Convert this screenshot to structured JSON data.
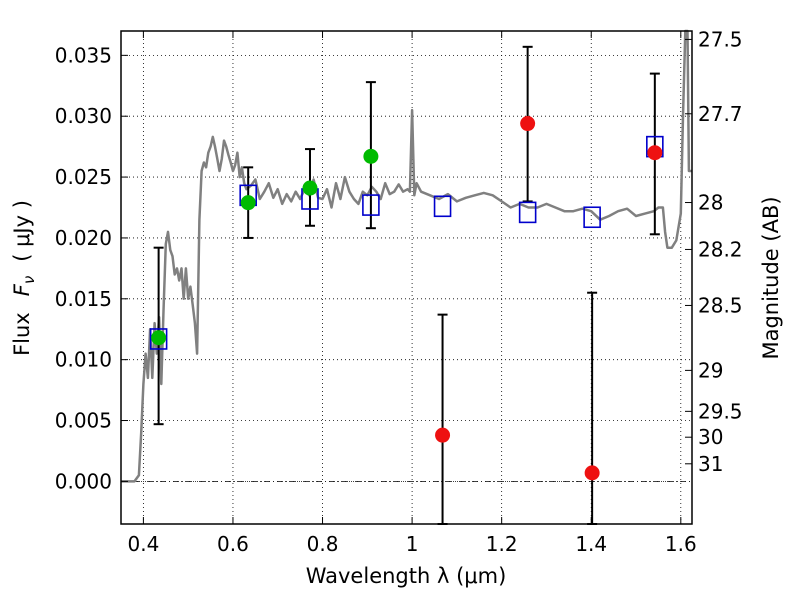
{
  "chart_data": {
    "type": "scatter",
    "xlabel": "Wavelength  λ (μm)",
    "ylabel_text": "Flux",
    "ylabel_symbol": "F",
    "ylabel_sub": "ν",
    "ylabel_unit": "( μJy )",
    "ylabel_right": "Magnitude (AB)",
    "xlim": [
      0.35,
      1.625
    ],
    "ylim": [
      -0.0035,
      0.037
    ],
    "grid": true,
    "x_ticks": [
      {
        "value": 0.4,
        "label": "0.4"
      },
      {
        "value": 0.6,
        "label": "0.6"
      },
      {
        "value": 0.8,
        "label": "0.8"
      },
      {
        "value": 1.0,
        "label": "1"
      },
      {
        "value": 1.2,
        "label": "1.2"
      },
      {
        "value": 1.4,
        "label": "1.4"
      },
      {
        "value": 1.6,
        "label": "1.6"
      }
    ],
    "y_ticks": [
      {
        "value": 0.0,
        "label": "0.000"
      },
      {
        "value": 0.005,
        "label": "0.005"
      },
      {
        "value": 0.01,
        "label": "0.010"
      },
      {
        "value": 0.015,
        "label": "0.015"
      },
      {
        "value": 0.02,
        "label": "0.020"
      },
      {
        "value": 0.025,
        "label": "0.025"
      },
      {
        "value": 0.03,
        "label": "0.030"
      },
      {
        "value": 0.035,
        "label": "0.035"
      }
    ],
    "mag_ticks": [
      {
        "value": 27.5,
        "label": "27.5"
      },
      {
        "value": 27.7,
        "label": "27.7"
      },
      {
        "value": 28.0,
        "label": "28"
      },
      {
        "value": 28.2,
        "label": "28.2"
      },
      {
        "value": 28.5,
        "label": "28.5"
      },
      {
        "value": 29.0,
        "label": "29"
      },
      {
        "value": 29.5,
        "label": "29.5"
      },
      {
        "value": 30.0,
        "label": "30"
      },
      {
        "value": 31.0,
        "label": "31"
      }
    ],
    "series": [
      {
        "type": "line",
        "color": "#808080",
        "points": [
          [
            0.35,
            0.0
          ],
          [
            0.38,
            0.0
          ],
          [
            0.39,
            0.0005
          ],
          [
            0.395,
            0.004
          ],
          [
            0.4,
            0.008
          ],
          [
            0.405,
            0.0105
          ],
          [
            0.41,
            0.0085
          ],
          [
            0.415,
            0.0125
          ],
          [
            0.42,
            0.0085
          ],
          [
            0.425,
            0.013
          ],
          [
            0.43,
            0.0105
          ],
          [
            0.435,
            0.0135
          ],
          [
            0.44,
            0.008
          ],
          [
            0.445,
            0.014
          ],
          [
            0.45,
            0.0195
          ],
          [
            0.455,
            0.0205
          ],
          [
            0.46,
            0.019
          ],
          [
            0.465,
            0.0185
          ],
          [
            0.47,
            0.017
          ],
          [
            0.475,
            0.0175
          ],
          [
            0.48,
            0.0165
          ],
          [
            0.485,
            0.0175
          ],
          [
            0.49,
            0.015
          ],
          [
            0.495,
            0.0175
          ],
          [
            0.5,
            0.015
          ],
          [
            0.505,
            0.016
          ],
          [
            0.51,
            0.0145
          ],
          [
            0.515,
            0.013
          ],
          [
            0.52,
            0.0105
          ],
          [
            0.525,
            0.0215
          ],
          [
            0.53,
            0.0255
          ],
          [
            0.535,
            0.0262
          ],
          [
            0.54,
            0.0258
          ],
          [
            0.545,
            0.027
          ],
          [
            0.55,
            0.0275
          ],
          [
            0.555,
            0.0283
          ],
          [
            0.56,
            0.0275
          ],
          [
            0.565,
            0.0265
          ],
          [
            0.57,
            0.0255
          ],
          [
            0.575,
            0.0265
          ],
          [
            0.58,
            0.028
          ],
          [
            0.585,
            0.0275
          ],
          [
            0.59,
            0.0268
          ],
          [
            0.595,
            0.0262
          ],
          [
            0.6,
            0.0255
          ],
          [
            0.605,
            0.026
          ],
          [
            0.61,
            0.027
          ],
          [
            0.615,
            0.025
          ],
          [
            0.62,
            0.0258
          ],
          [
            0.625,
            0.0245
          ],
          [
            0.63,
            0.024
          ],
          [
            0.64,
            0.0243
          ],
          [
            0.65,
            0.0248
          ],
          [
            0.66,
            0.0232
          ],
          [
            0.67,
            0.0238
          ],
          [
            0.68,
            0.0245
          ],
          [
            0.69,
            0.0233
          ],
          [
            0.7,
            0.024
          ],
          [
            0.71,
            0.0228
          ],
          [
            0.72,
            0.0236
          ],
          [
            0.73,
            0.023
          ],
          [
            0.74,
            0.0238
          ],
          [
            0.75,
            0.0232
          ],
          [
            0.76,
            0.024
          ],
          [
            0.77,
            0.0235
          ],
          [
            0.78,
            0.0248
          ],
          [
            0.79,
            0.0233
          ],
          [
            0.8,
            0.0232
          ],
          [
            0.81,
            0.024
          ],
          [
            0.82,
            0.0225
          ],
          [
            0.83,
            0.0245
          ],
          [
            0.84,
            0.0232
          ],
          [
            0.85,
            0.025
          ],
          [
            0.86,
            0.0238
          ],
          [
            0.87,
            0.0232
          ],
          [
            0.88,
            0.0228
          ],
          [
            0.89,
            0.0238
          ],
          [
            0.9,
            0.0235
          ],
          [
            0.91,
            0.0242
          ],
          [
            0.92,
            0.0238
          ],
          [
            0.93,
            0.0232
          ],
          [
            0.94,
            0.0245
          ],
          [
            0.95,
            0.0236
          ],
          [
            0.96,
            0.0238
          ],
          [
            0.97,
            0.0244
          ],
          [
            0.98,
            0.0238
          ],
          [
            0.99,
            0.024
          ],
          [
            0.995,
            0.0238
          ],
          [
            1.0,
            0.0305
          ],
          [
            1.005,
            0.0235
          ],
          [
            1.01,
            0.0245
          ],
          [
            1.02,
            0.0238
          ],
          [
            1.04,
            0.0235
          ],
          [
            1.06,
            0.0232
          ],
          [
            1.08,
            0.0236
          ],
          [
            1.1,
            0.023
          ],
          [
            1.12,
            0.0233
          ],
          [
            1.14,
            0.0235
          ],
          [
            1.16,
            0.0237
          ],
          [
            1.18,
            0.0235
          ],
          [
            1.2,
            0.023
          ],
          [
            1.22,
            0.0225
          ],
          [
            1.24,
            0.0228
          ],
          [
            1.26,
            0.0225
          ],
          [
            1.28,
            0.0225
          ],
          [
            1.3,
            0.0228
          ],
          [
            1.32,
            0.0225
          ],
          [
            1.34,
            0.0222
          ],
          [
            1.36,
            0.0222
          ],
          [
            1.38,
            0.0224
          ],
          [
            1.4,
            0.0222
          ],
          [
            1.42,
            0.0215
          ],
          [
            1.44,
            0.0218
          ],
          [
            1.46,
            0.0222
          ],
          [
            1.48,
            0.0224
          ],
          [
            1.5,
            0.0218
          ],
          [
            1.52,
            0.022
          ],
          [
            1.54,
            0.0222
          ],
          [
            1.55,
            0.0225
          ],
          [
            1.56,
            0.0225
          ],
          [
            1.565,
            0.0205
          ],
          [
            1.57,
            0.0192
          ],
          [
            1.58,
            0.0192
          ],
          [
            1.59,
            0.0198
          ],
          [
            1.6,
            0.022
          ],
          [
            1.605,
            0.03
          ],
          [
            1.61,
            0.037
          ],
          [
            1.615,
            0.037
          ],
          [
            1.618,
            0.0255
          ],
          [
            1.625,
            0.0255
          ]
        ]
      },
      {
        "type": "errorbar",
        "color": "#000000",
        "points": [
          {
            "x": 0.434,
            "low": 0.0047,
            "high": 0.0192
          },
          {
            "x": 0.634,
            "low": 0.02,
            "high": 0.0258
          },
          {
            "x": 0.772,
            "low": 0.021,
            "high": 0.0273
          },
          {
            "x": 0.908,
            "low": 0.0208,
            "high": 0.0328
          },
          {
            "x": 1.068,
            "low": -0.0035,
            "high": 0.0137
          },
          {
            "x": 1.258,
            "low": 0.023,
            "high": 0.0357
          },
          {
            "x": 1.402,
            "low": -0.0035,
            "high": 0.0155
          },
          {
            "x": 1.542,
            "low": 0.0203,
            "high": 0.0335
          }
        ]
      },
      {
        "type": "scatter",
        "marker": "square",
        "color": "#0000cc",
        "points": [
          [
            0.434,
            0.0117
          ],
          [
            0.634,
            0.0235
          ],
          [
            0.772,
            0.0232
          ],
          [
            0.908,
            0.0227
          ],
          [
            1.068,
            0.0226
          ],
          [
            1.258,
            0.0221
          ],
          [
            1.402,
            0.0217
          ],
          [
            1.542,
            0.0275
          ]
        ]
      },
      {
        "type": "scatter",
        "marker": "circle",
        "color": "#00bb00",
        "points": [
          [
            0.434,
            0.0118
          ],
          [
            0.634,
            0.0229
          ],
          [
            0.772,
            0.0241
          ],
          [
            0.908,
            0.0267
          ]
        ]
      },
      {
        "type": "scatter",
        "marker": "circle",
        "color": "#ee1111",
        "points": [
          [
            1.068,
            0.0038
          ],
          [
            1.258,
            0.0294
          ],
          [
            1.402,
            0.0007
          ],
          [
            1.542,
            0.027
          ]
        ]
      }
    ]
  }
}
